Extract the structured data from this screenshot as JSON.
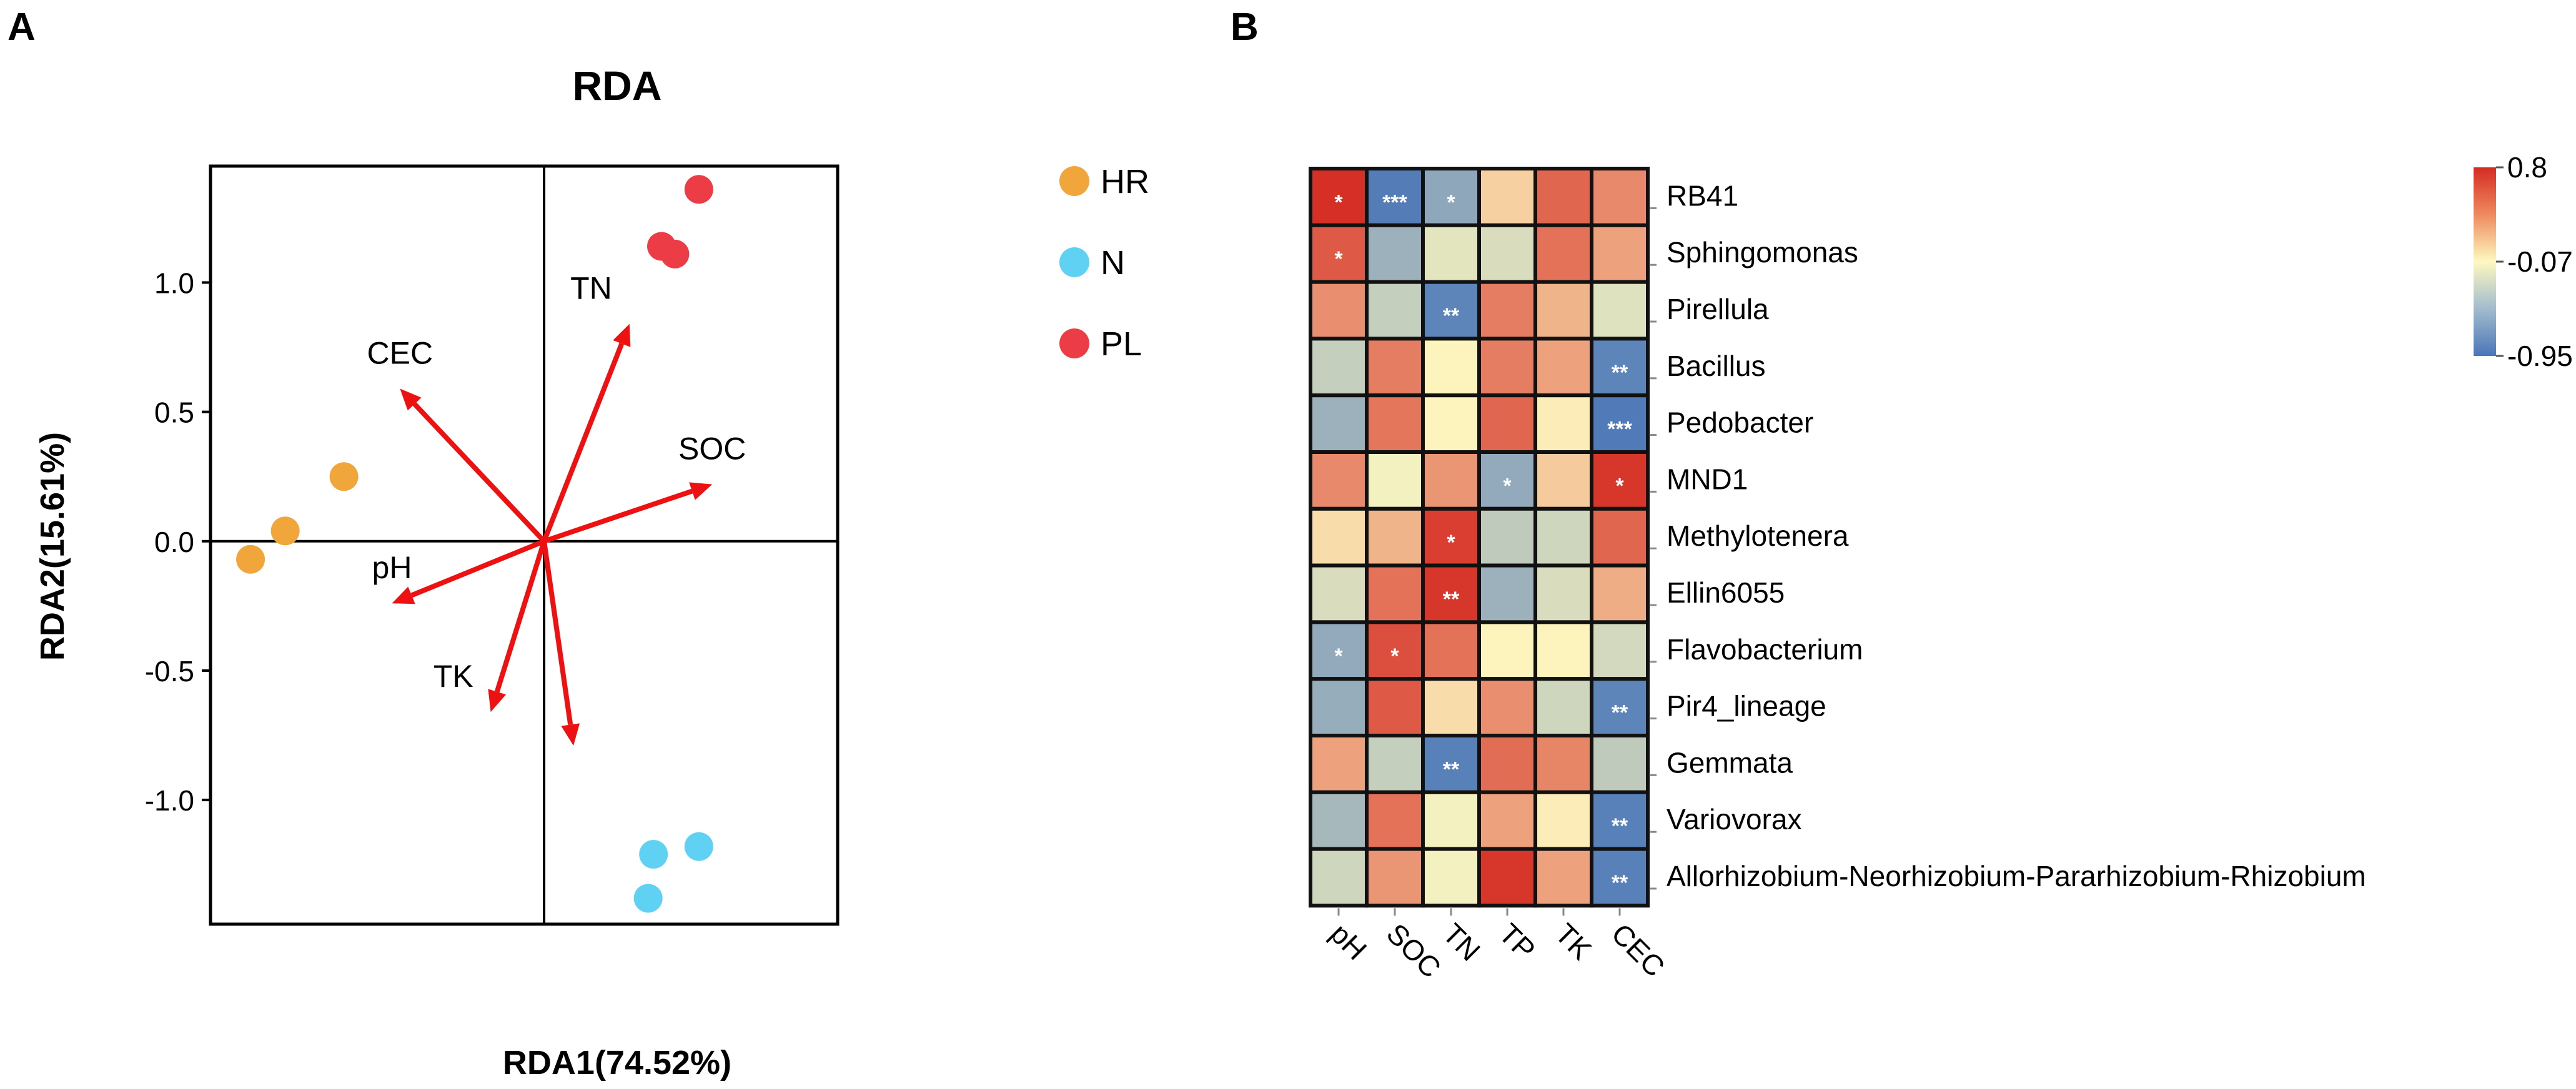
{
  "panels": {
    "a": "A",
    "b": "B"
  },
  "colors": {
    "hr": "#f0a63a",
    "n": "#5fd1f2",
    "pl": "#ec3c46",
    "arrow": "#ee1111",
    "scale_low": "#4a76b8",
    "scale_mid": "#fef8c0",
    "scale_high": "#d52b22"
  },
  "chart_data": [
    {
      "type": "scatter",
      "subtype": "RDA biplot",
      "title": "RDA",
      "xlabel": "RDA1(74.52%)",
      "ylabel": "RDA2(15.61%)",
      "xlim": [
        -1.25,
        1.1
      ],
      "ylim": [
        -1.48,
        1.45
      ],
      "yticks": [
        1.0,
        0.5,
        0.0,
        -0.5,
        -1.0
      ],
      "ytick_labels": [
        "1.0",
        "0.5",
        "0.0",
        "-0.5",
        "-1.0"
      ],
      "zero_lines": true,
      "legend_position": "right",
      "series": [
        {
          "name": "HR",
          "color": "#f0a63a",
          "points": [
            [
              -1.1,
              -0.07
            ],
            [
              -0.97,
              0.04
            ],
            [
              -0.75,
              0.25
            ]
          ]
        },
        {
          "name": "N",
          "color": "#5fd1f2",
          "points": [
            [
              0.39,
              -1.38
            ],
            [
              0.41,
              -1.21
            ],
            [
              0.58,
              -1.18
            ]
          ]
        },
        {
          "name": "PL",
          "color": "#ec3c46",
          "points": [
            [
              0.44,
              1.14
            ],
            [
              0.49,
              1.11
            ],
            [
              0.58,
              1.36
            ]
          ]
        }
      ],
      "vectors": [
        {
          "label": "CEC",
          "x": -0.54,
          "y": 0.59,
          "label_anchor": "above"
        },
        {
          "label": "TN",
          "x": 0.32,
          "y": 0.84,
          "label_anchor": "above-left"
        },
        {
          "label": "SOC",
          "x": 0.63,
          "y": 0.22,
          "label_anchor": "above"
        },
        {
          "label": "pH",
          "x": -0.57,
          "y": -0.24,
          "label_anchor": "above"
        },
        {
          "label": "TK",
          "x": -0.2,
          "y": -0.66,
          "label_anchor": "above-left"
        },
        {
          "label": "",
          "x": 0.11,
          "y": -0.79,
          "label_anchor": "none"
        }
      ]
    },
    {
      "type": "heatmap",
      "title": "",
      "columns": [
        "pH",
        "SOC",
        "TN",
        "TP",
        "TK",
        "CEC"
      ],
      "rows": [
        "RB41",
        "Sphingomonas",
        "Pirellula",
        "Bacillus",
        "Pedobacter",
        "MND1",
        "Methylotenera",
        "Ellin6055",
        "Flavobacterium",
        "Pir4_lineage",
        "Gemmata",
        "Variovorax",
        "Allorhizobium-Neorhizobium-Pararhizobium-Rhizobium"
      ],
      "values": [
        [
          0.78,
          -0.9,
          -0.62,
          0.1,
          0.55,
          0.4
        ],
        [
          0.6,
          -0.55,
          -0.2,
          -0.25,
          0.5,
          0.3
        ],
        [
          0.38,
          -0.35,
          -0.85,
          0.45,
          0.22,
          -0.22
        ],
        [
          -0.35,
          0.45,
          -0.05,
          0.45,
          0.3,
          -0.85
        ],
        [
          -0.55,
          0.48,
          -0.05,
          0.55,
          -0.02,
          -0.92
        ],
        [
          0.4,
          -0.12,
          0.35,
          -0.6,
          0.12,
          0.75
        ],
        [
          0.05,
          0.22,
          0.72,
          -0.38,
          -0.3,
          0.55
        ],
        [
          -0.25,
          0.5,
          0.75,
          -0.55,
          -0.25,
          0.25
        ],
        [
          -0.6,
          0.65,
          0.5,
          -0.05,
          -0.05,
          -0.28
        ],
        [
          -0.58,
          0.6,
          0.05,
          0.38,
          -0.3,
          -0.85
        ],
        [
          0.3,
          -0.35,
          -0.88,
          0.52,
          0.42,
          -0.38
        ],
        [
          -0.5,
          0.5,
          -0.12,
          0.3,
          -0.02,
          -0.88
        ],
        [
          -0.3,
          0.35,
          -0.12,
          0.75,
          0.3,
          -0.88
        ]
      ],
      "significance": [
        [
          "*",
          "***",
          "*",
          "",
          "",
          ""
        ],
        [
          "*",
          "",
          "",
          "",
          "",
          ""
        ],
        [
          "",
          "",
          "**",
          "",
          "",
          ""
        ],
        [
          "",
          "",
          "",
          "",
          "",
          "**"
        ],
        [
          "",
          "",
          "",
          "",
          "",
          "***"
        ],
        [
          "",
          "",
          "",
          "*",
          "",
          "*"
        ],
        [
          "",
          "",
          "*",
          "",
          "",
          ""
        ],
        [
          "",
          "",
          "**",
          "",
          "",
          ""
        ],
        [
          "*",
          "*",
          "",
          "",
          "",
          ""
        ],
        [
          "",
          "",
          "",
          "",
          "",
          "**"
        ],
        [
          "",
          "",
          "**",
          "",
          "",
          ""
        ],
        [
          "",
          "",
          "",
          "",
          "",
          "**"
        ],
        [
          "",
          "",
          "",
          "",
          "",
          "**"
        ]
      ],
      "colorbar": {
        "min": -0.95,
        "mid": -0.07,
        "max": 0.8,
        "labels": [
          "0.8",
          "-0.07",
          "-0.95"
        ]
      }
    }
  ]
}
